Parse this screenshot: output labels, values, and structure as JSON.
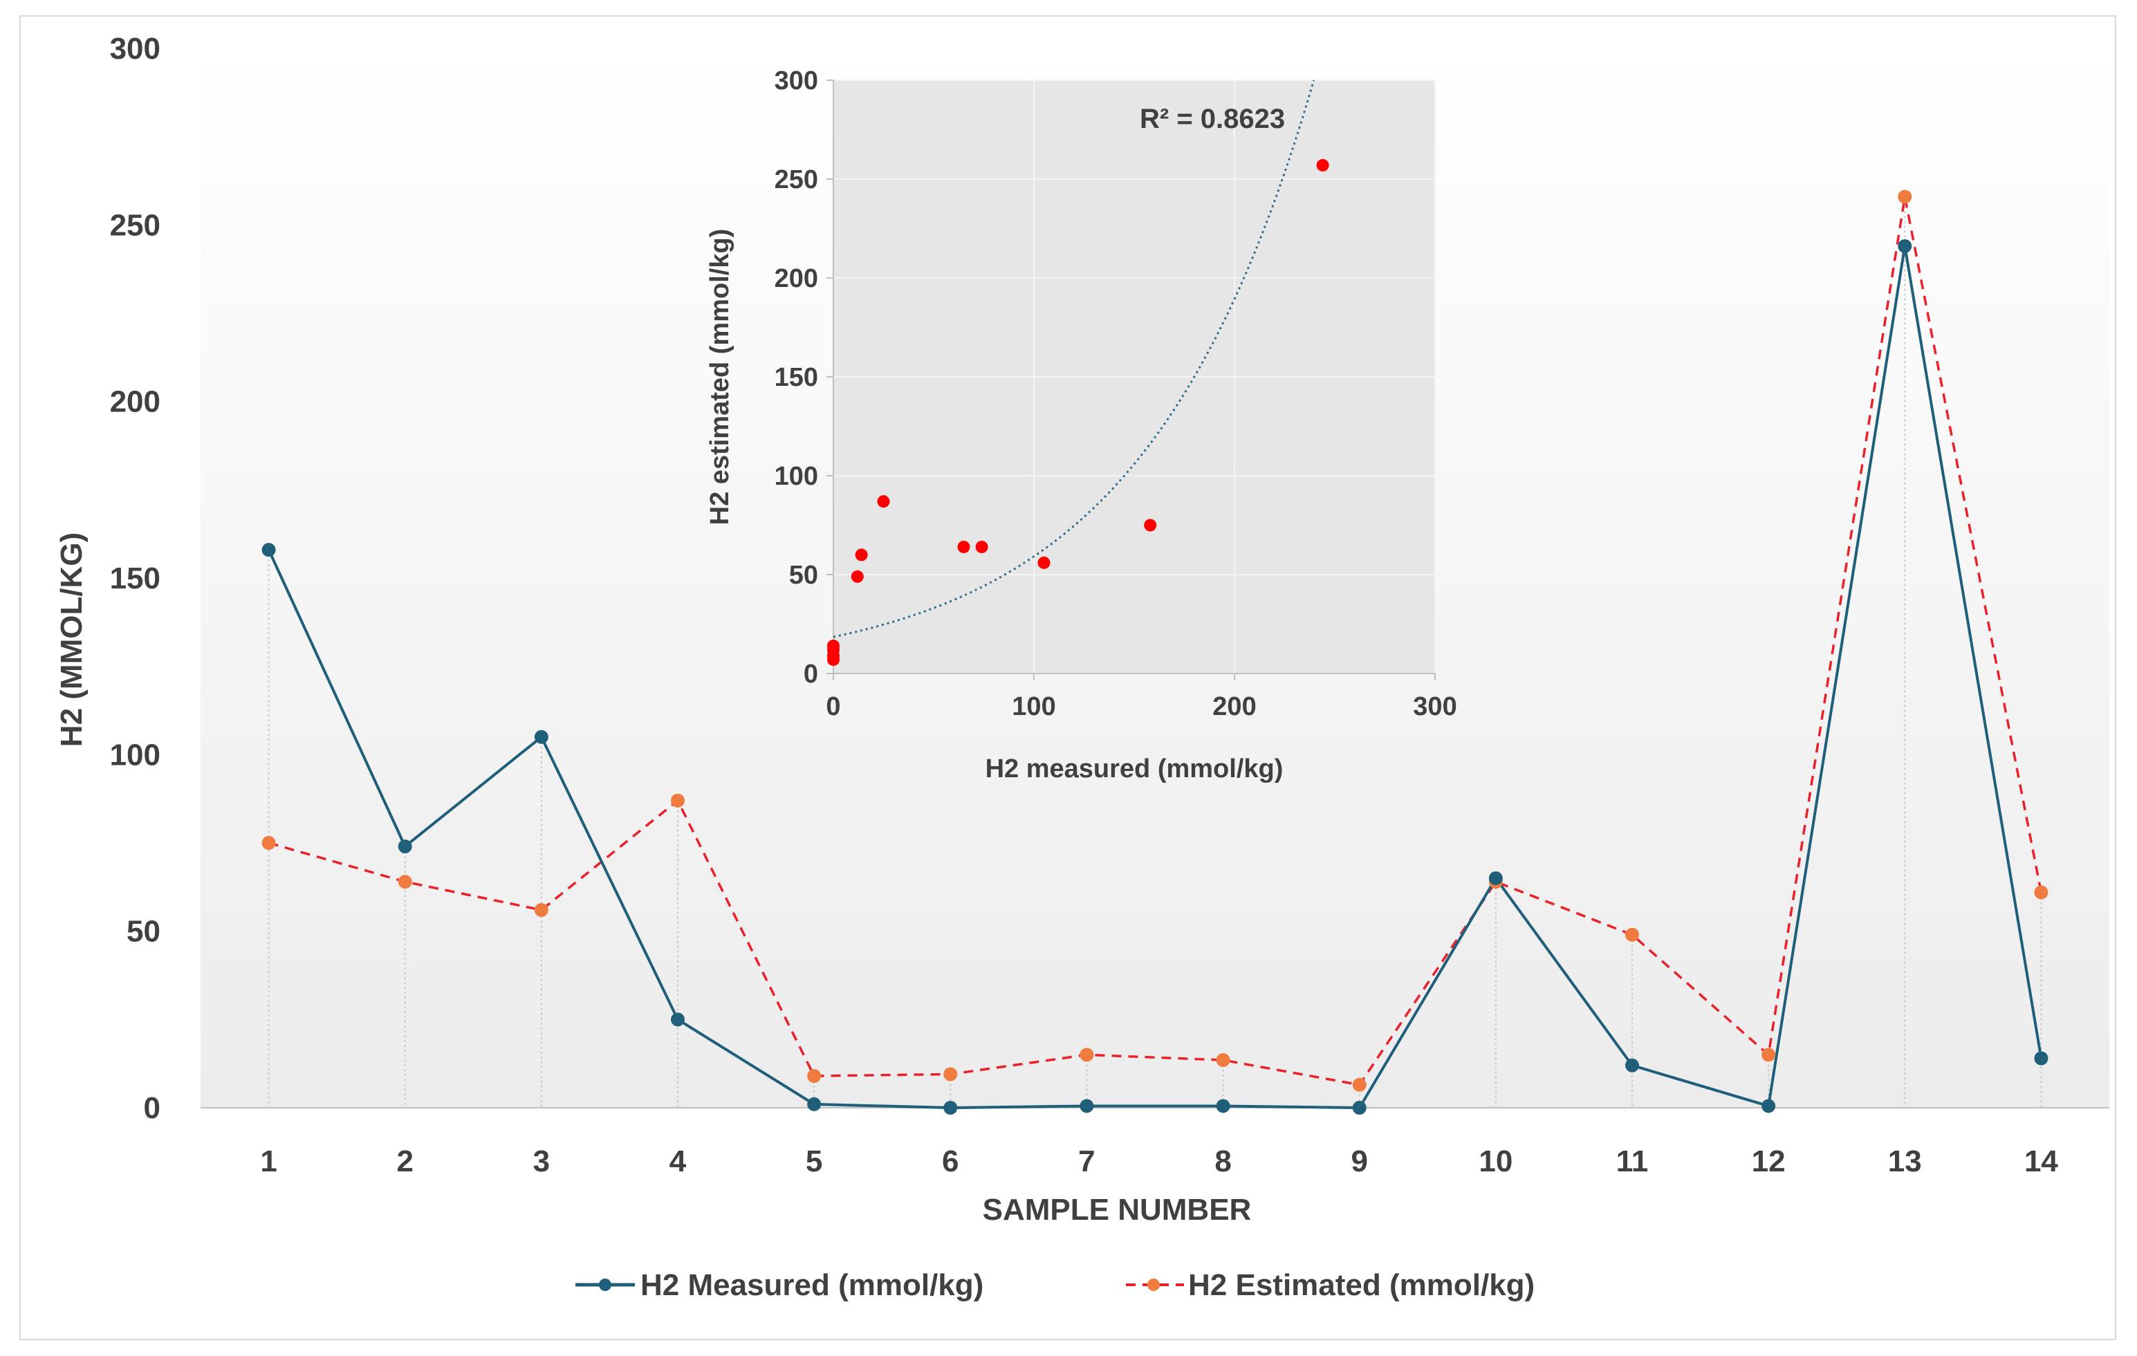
{
  "chart_data": [
    {
      "type": "line",
      "title": "",
      "xlabel": "SAMPLE NUMBER",
      "ylabel": "H2 (MMOL/KG)",
      "categories": [
        "1",
        "2",
        "3",
        "4",
        "5",
        "6",
        "7",
        "8",
        "9",
        "10",
        "11",
        "12",
        "13",
        "14"
      ],
      "ylim": [
        0,
        300
      ],
      "yticks": [
        "0",
        "50",
        "100",
        "150",
        "200",
        "250",
        "300"
      ],
      "grid": "vertical dotted drop lines",
      "legend": "bottom",
      "series": [
        {
          "name": "H2 Measured (mmol/kg)",
          "color": "#1f5f7a",
          "style": "solid",
          "values": [
            158,
            74,
            105,
            25,
            1,
            0,
            0.5,
            0.5,
            0,
            65,
            12,
            0.5,
            244,
            14
          ]
        },
        {
          "name": "H2 Estimated (mmol/kg)",
          "color": "#e8222a",
          "marker_color": "#f07b3f",
          "style": "dashed",
          "values": [
            75,
            64,
            56,
            87,
            9,
            9.5,
            15,
            13.5,
            6.5,
            64,
            49,
            15,
            258,
            61
          ]
        }
      ]
    },
    {
      "type": "scatter",
      "title": "",
      "xlabel": "H2 measured (mmol/kg)",
      "ylabel": "H2 estimated (mmol/kg)",
      "xlim": [
        0,
        300
      ],
      "ylim": [
        0,
        300
      ],
      "xticks": [
        "0",
        "100",
        "200",
        "300"
      ],
      "yticks": [
        "0",
        "50",
        "100",
        "150",
        "200",
        "250",
        "300"
      ],
      "grid": true,
      "annotation": "R² = 0.8623",
      "trendline": {
        "type": "exponential",
        "a": 18.5,
        "b": 0.01163,
        "style": "dotted",
        "color": "#2e6b8a"
      },
      "points": [
        {
          "x": 0,
          "y": 14
        },
        {
          "x": 0,
          "y": 9
        },
        {
          "x": 0,
          "y": 7
        },
        {
          "x": 0,
          "y": 12
        },
        {
          "x": 12,
          "y": 49
        },
        {
          "x": 14,
          "y": 60
        },
        {
          "x": 25,
          "y": 87
        },
        {
          "x": 65,
          "y": 64
        },
        {
          "x": 74,
          "y": 64
        },
        {
          "x": 105,
          "y": 56
        },
        {
          "x": 158,
          "y": 75
        },
        {
          "x": 244,
          "y": 257
        }
      ],
      "point_color": "#ff0000"
    }
  ]
}
